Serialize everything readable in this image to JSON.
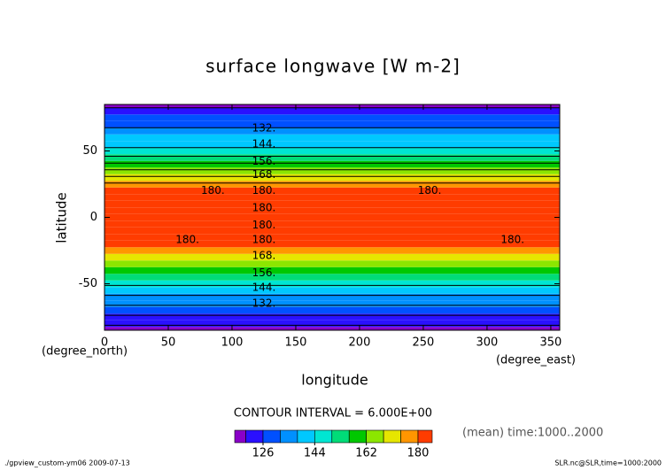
{
  "chart_data": {
    "type": "contour",
    "title": "surface longwave [W m-2]",
    "x_label": "longitude",
    "y_label": "latitude",
    "x_unit": "(degree_east)",
    "y_unit": "(degree_north)",
    "contour_interval": "CONTOUR INTERVAL = 6.000E+00",
    "mean_note": "(mean) time:1000..2000",
    "footer_left": "./gpview_custom-ym06  2009-07-13",
    "footer_right": "SLR.nc@SLR,time=1000:2000",
    "xlim": [
      0,
      357
    ],
    "ylim": [
      -85,
      85
    ],
    "xticks": [
      0,
      50,
      100,
      150,
      200,
      250,
      300,
      350
    ],
    "yticks": [
      -50,
      0,
      50
    ],
    "y": [
      -85,
      -80,
      -75,
      -70,
      -65,
      -60,
      -55,
      -50,
      -45,
      -40,
      -35,
      -30,
      -25,
      -20,
      -15,
      -10,
      -5,
      0,
      5,
      10,
      15,
      20,
      25,
      30,
      35,
      40,
      45,
      50,
      55,
      60,
      65,
      70,
      75,
      80,
      85
    ],
    "values": [
      117,
      121,
      125,
      129,
      133,
      137,
      141,
      145,
      150,
      156,
      162,
      168,
      174,
      180,
      182,
      183,
      184,
      184,
      184,
      183,
      182,
      180,
      175,
      169,
      163,
      157,
      151,
      146,
      142,
      138,
      134,
      130,
      126,
      122,
      118
    ],
    "levels": [
      120,
      126,
      132,
      138,
      144,
      150,
      156,
      162,
      168,
      174,
      180
    ],
    "colors": [
      "#8a00c8",
      "#2a10ff",
      "#0050ff",
      "#0090ff",
      "#00c8ff",
      "#00e6d2",
      "#00dc78",
      "#00c800",
      "#8ce600",
      "#e6e600",
      "#ff9600",
      "#ff3c00"
    ],
    "colorbar_ticks": [
      126,
      144,
      162,
      180
    ],
    "contour_labels": [
      {
        "label": "132.",
        "value": 132,
        "x": 125,
        "y": 67
      },
      {
        "label": "144.",
        "value": 144,
        "x": 125,
        "y": 55
      },
      {
        "label": "156.",
        "value": 156,
        "x": 125,
        "y": 42
      },
      {
        "label": "168.",
        "value": 168,
        "x": 125,
        "y": 32
      },
      {
        "label": "180.",
        "value": 180,
        "x": 125,
        "y": 20
      },
      {
        "label": "180.",
        "value": 180,
        "x": 85,
        "y": 20
      },
      {
        "label": "180.",
        "value": 180,
        "x": 255,
        "y": 20
      },
      {
        "label": "180.",
        "value": 180,
        "x": 125,
        "y": 7
      },
      {
        "label": "180.",
        "value": 180,
        "x": 125,
        "y": -6
      },
      {
        "label": "180.",
        "value": 180,
        "x": 125,
        "y": -17
      },
      {
        "label": "180.",
        "value": 180,
        "x": 65,
        "y": -17
      },
      {
        "label": "180.",
        "value": 180,
        "x": 320,
        "y": -17
      },
      {
        "label": "168.",
        "value": 168,
        "x": 125,
        "y": -29
      },
      {
        "label": "156.",
        "value": 156,
        "x": 125,
        "y": -42
      },
      {
        "label": "144.",
        "value": 144,
        "x": 125,
        "y": -53
      },
      {
        "label": "132.",
        "value": 132,
        "x": 125,
        "y": -65
      }
    ]
  }
}
